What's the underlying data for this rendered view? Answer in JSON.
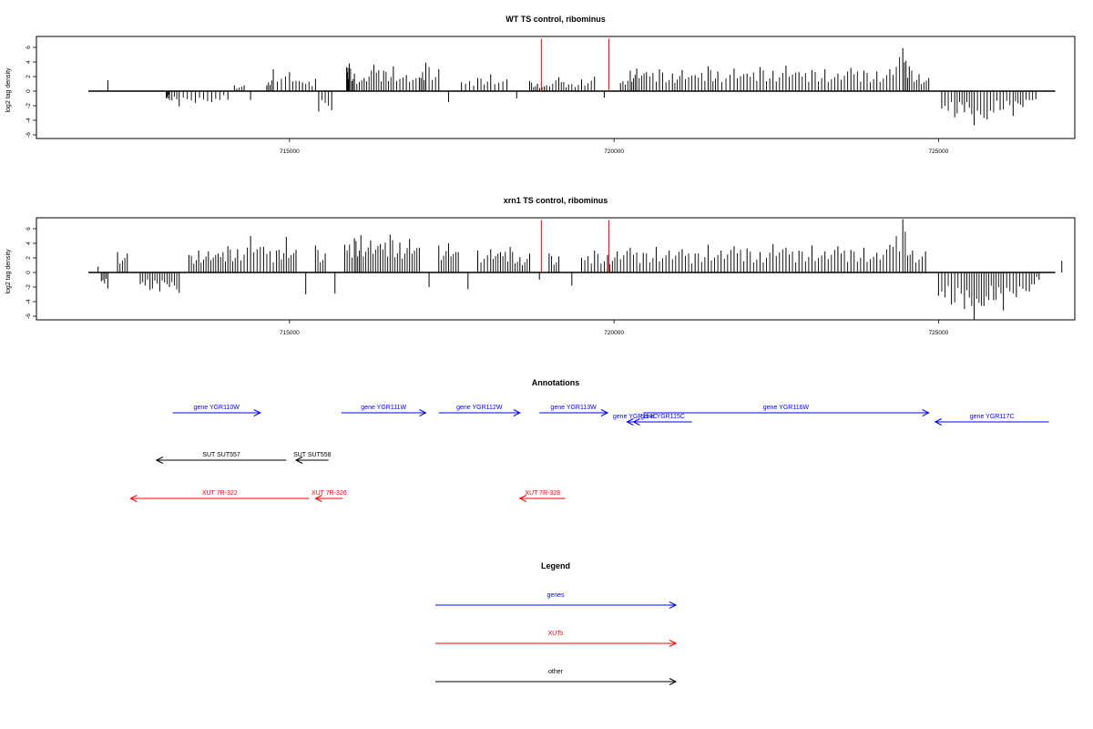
{
  "chart_data": [
    {
      "type": "bar",
      "title": "WT TS control, ribominus",
      "ylabel": "log2 tag density",
      "xlim": [
        711100,
        727100
      ],
      "ylim": [
        -6.5,
        7.5
      ],
      "xticks": [
        715000,
        720000,
        725000
      ],
      "yticks": [
        -6,
        -4,
        -2,
        0,
        2,
        4,
        6
      ],
      "grid": false,
      "markers": {
        "color": "#ff0000",
        "x": [
          718880,
          719920
        ],
        "y": 7.2
      },
      "bars": [
        [
          712200,
          1.5
        ],
        [
          713100,
          -1.0
        ],
        [
          713150,
          -1.2
        ],
        [
          713300,
          -2.1
        ],
        [
          713550,
          -1.6
        ],
        [
          713800,
          -1.5
        ],
        [
          714050,
          -1.2
        ],
        [
          714150,
          0.8
        ],
        [
          714300,
          0.8
        ],
        [
          714400,
          -1.2
        ],
        [
          714650,
          0.8
        ],
        [
          714750,
          3.0
        ],
        [
          715000,
          2.6
        ],
        [
          715200,
          1.2
        ],
        [
          715400,
          1.7
        ],
        [
          715450,
          -2.8
        ],
        [
          715650,
          -2.6
        ],
        [
          715880,
          3.3
        ],
        [
          715920,
          3.8
        ],
        [
          716000,
          2.4
        ],
        [
          716150,
          1.8
        ],
        [
          716300,
          3.6
        ],
        [
          716450,
          2.8
        ],
        [
          716600,
          3.4
        ],
        [
          716800,
          2.2
        ],
        [
          717000,
          1.9
        ],
        [
          717100,
          3.9
        ],
        [
          717300,
          3.0
        ],
        [
          717450,
          -1.5
        ],
        [
          717650,
          1.2
        ],
        [
          717900,
          1.8
        ],
        [
          718100,
          2.3
        ],
        [
          718350,
          1.6
        ],
        [
          718500,
          -1.0
        ],
        [
          718700,
          1.4
        ],
        [
          718820,
          1.0
        ],
        [
          718960,
          0.8
        ],
        [
          719150,
          1.9
        ],
        [
          719300,
          0.9
        ],
        [
          719500,
          1.6
        ],
        [
          719700,
          2.0
        ],
        [
          719850,
          -0.9
        ],
        [
          720100,
          1.1
        ],
        [
          720250,
          2.8
        ],
        [
          720350,
          3.1
        ],
        [
          720500,
          2.6
        ],
        [
          720700,
          3.0
        ],
        [
          720900,
          2.4
        ],
        [
          721050,
          2.9
        ],
        [
          721250,
          2.2
        ],
        [
          721450,
          3.4
        ],
        [
          721600,
          2.7
        ],
        [
          721850,
          3.1
        ],
        [
          722050,
          2.4
        ],
        [
          722250,
          3.3
        ],
        [
          722450,
          2.8
        ],
        [
          722650,
          3.5
        ],
        [
          722850,
          2.6
        ],
        [
          723050,
          2.9
        ],
        [
          723250,
          3.0
        ],
        [
          723450,
          2.4
        ],
        [
          723650,
          3.2
        ],
        [
          723850,
          2.8
        ],
        [
          724050,
          2.7
        ],
        [
          724250,
          3.0
        ],
        [
          724450,
          5.9
        ],
        [
          724550,
          3.4
        ],
        [
          724700,
          2.3
        ],
        [
          724850,
          1.8
        ],
        [
          725050,
          -2.4
        ],
        [
          725250,
          -3.6
        ],
        [
          725400,
          -2.9
        ],
        [
          725550,
          -4.7
        ],
        [
          725750,
          -3.9
        ],
        [
          725950,
          -2.6
        ],
        [
          726150,
          -3.4
        ],
        [
          726300,
          -2.2
        ],
        [
          726500,
          -1.1
        ]
      ]
    },
    {
      "type": "bar",
      "title": "xrn1 TS control, ribominus",
      "ylabel": "log2 tag density",
      "xlim": [
        711100,
        727100
      ],
      "ylim": [
        -6.5,
        7.5
      ],
      "xticks": [
        715000,
        720000,
        725000
      ],
      "yticks": [
        -6,
        -4,
        -2,
        0,
        2,
        4,
        6
      ],
      "grid": false,
      "markers": {
        "color": "#ff0000",
        "x": [
          718880,
          719920
        ],
        "y": 7.2
      },
      "bars": [
        [
          712050,
          0.8
        ],
        [
          712100,
          -1.2
        ],
        [
          712200,
          -2.2
        ],
        [
          712350,
          2.8
        ],
        [
          712500,
          2.6
        ],
        [
          712700,
          -1.6
        ],
        [
          712850,
          -2.4
        ],
        [
          713000,
          -2.6
        ],
        [
          713150,
          -2.0
        ],
        [
          713300,
          -2.8
        ],
        [
          713450,
          2.4
        ],
        [
          713600,
          3.0
        ],
        [
          713750,
          2.9
        ],
        [
          713900,
          2.6
        ],
        [
          714050,
          3.6
        ],
        [
          714200,
          3.2
        ],
        [
          714400,
          5.0
        ],
        [
          714600,
          3.5
        ],
        [
          714800,
          3.0
        ],
        [
          714950,
          4.9
        ],
        [
          715100,
          3.1
        ],
        [
          715250,
          -3.0
        ],
        [
          715400,
          3.7
        ],
        [
          715550,
          2.6
        ],
        [
          715700,
          -2.9
        ],
        [
          715850,
          3.8
        ],
        [
          716000,
          4.7
        ],
        [
          716100,
          5.1
        ],
        [
          716250,
          4.4
        ],
        [
          716400,
          3.9
        ],
        [
          716550,
          5.2
        ],
        [
          716700,
          4.1
        ],
        [
          716850,
          4.6
        ],
        [
          717000,
          3.4
        ],
        [
          717150,
          -2.0
        ],
        [
          717300,
          3.7
        ],
        [
          717450,
          4.0
        ],
        [
          717600,
          2.8
        ],
        [
          717750,
          -2.3
        ],
        [
          717900,
          3.0
        ],
        [
          718100,
          3.2
        ],
        [
          718250,
          2.8
        ],
        [
          718400,
          3.5
        ],
        [
          718550,
          2.1
        ],
        [
          718700,
          2.6
        ],
        [
          718850,
          -1.0
        ],
        [
          719000,
          2.6
        ],
        [
          719150,
          2.2
        ],
        [
          719350,
          -1.8
        ],
        [
          719500,
          2.0
        ],
        [
          719700,
          3.0
        ],
        [
          719900,
          2.4
        ],
        [
          720050,
          2.9
        ],
        [
          720250,
          3.4
        ],
        [
          720450,
          2.7
        ],
        [
          720650,
          3.5
        ],
        [
          720850,
          3.0
        ],
        [
          721050,
          3.2
        ],
        [
          721250,
          2.6
        ],
        [
          721450,
          3.8
        ],
        [
          721650,
          3.0
        ],
        [
          721850,
          3.6
        ],
        [
          722050,
          3.3
        ],
        [
          722250,
          2.8
        ],
        [
          722450,
          3.9
        ],
        [
          722650,
          3.4
        ],
        [
          722850,
          3.0
        ],
        [
          723050,
          3.7
        ],
        [
          723250,
          2.9
        ],
        [
          723450,
          3.6
        ],
        [
          723650,
          3.1
        ],
        [
          723850,
          3.4
        ],
        [
          724050,
          2.7
        ],
        [
          724250,
          3.8
        ],
        [
          724450,
          7.3
        ],
        [
          724600,
          3.0
        ],
        [
          724800,
          2.9
        ],
        [
          725000,
          -3.2
        ],
        [
          725200,
          -4.4
        ],
        [
          725400,
          -5.0
        ],
        [
          725550,
          -6.5
        ],
        [
          725700,
          -4.6
        ],
        [
          725850,
          -3.8
        ],
        [
          726000,
          -5.2
        ],
        [
          726200,
          -3.4
        ],
        [
          726400,
          -2.6
        ],
        [
          726550,
          -1.0
        ],
        [
          726900,
          1.6
        ]
      ]
    },
    {
      "type": "diagram",
      "title": "Annotations",
      "xlim": [
        711100,
        727100
      ],
      "features": [
        {
          "label": "gene YGR110W",
          "category": "genes",
          "start": 713200,
          "end": 714550,
          "strand": "+",
          "row": 0
        },
        {
          "label": "gene YGR111W",
          "category": "genes",
          "start": 715800,
          "end": 717100,
          "strand": "+",
          "row": 0
        },
        {
          "label": "gene YGR112W",
          "category": "genes",
          "start": 717300,
          "end": 718550,
          "strand": "+",
          "row": 0
        },
        {
          "label": "gene YGR113W",
          "category": "genes",
          "start": 718850,
          "end": 719900,
          "strand": "+",
          "row": 0
        },
        {
          "label": "gene YGR114C",
          "category": "genes",
          "start": 720200,
          "end": 720450,
          "strand": "-",
          "row": 1
        },
        {
          "label": "gene YGR115C",
          "category": "genes",
          "start": 720300,
          "end": 721200,
          "strand": "-",
          "row": 1
        },
        {
          "label": "gene YGR116W",
          "category": "genes",
          "start": 720450,
          "end": 724850,
          "strand": "+",
          "row": 0
        },
        {
          "label": "gene YGR117C",
          "category": "genes",
          "start": 724950,
          "end": 726700,
          "strand": "-",
          "row": 1
        },
        {
          "label": "SUT SUT557",
          "category": "other",
          "start": 712950,
          "end": 714950,
          "strand": "-",
          "row": 2
        },
        {
          "label": "SUT SUT558",
          "category": "other",
          "start": 715100,
          "end": 715600,
          "strand": "-",
          "row": 2
        },
        {
          "label": "XUT 7R-322",
          "category": "XUTs",
          "start": 712550,
          "end": 715300,
          "strand": "-",
          "row": 3
        },
        {
          "label": "XUT 7R-326",
          "category": "XUTs",
          "start": 715400,
          "end": 715820,
          "strand": "-",
          "row": 3
        },
        {
          "label": "XUT 7R-328",
          "category": "XUTs",
          "start": 718550,
          "end": 719250,
          "strand": "-",
          "row": 3
        }
      ]
    },
    {
      "type": "legend",
      "title": "Legend",
      "entries": [
        {
          "label": "genes",
          "color": "#0000ff"
        },
        {
          "label": "XUTs",
          "color": "#ff0000"
        },
        {
          "label": "other",
          "color": "#000000"
        }
      ]
    }
  ]
}
